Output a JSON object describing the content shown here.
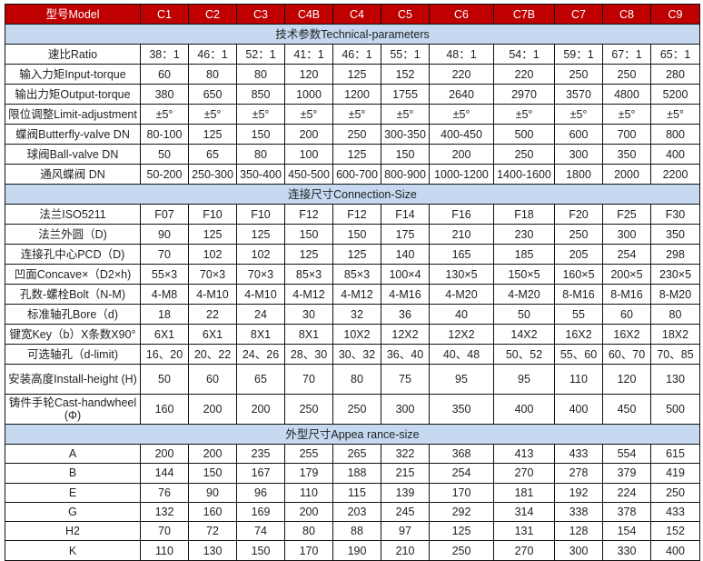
{
  "header": {
    "label": "型号Model",
    "models": [
      "C1",
      "C2",
      "C3",
      "C4B",
      "C4",
      "C5",
      "C6",
      "C7B",
      "C7",
      "C8",
      "C9"
    ]
  },
  "colors": {
    "header_bg": "#c00000",
    "section_bg": "#c6d9f0"
  },
  "sections": [
    {
      "title": "技术参数Technical-parameters",
      "rows": [
        {
          "label": "速比Ratio",
          "values": [
            "38：1",
            "46：1",
            "52：1",
            "41：1",
            "46：1",
            "55：1",
            "48：1",
            "54：1",
            "59：1",
            "67：1",
            "65：1"
          ]
        },
        {
          "label": "输入力矩Input-torque",
          "values": [
            "60",
            "80",
            "80",
            "120",
            "125",
            "152",
            "220",
            "220",
            "250",
            "250",
            "280"
          ]
        },
        {
          "label": "输出力矩Output-torque",
          "values": [
            "380",
            "650",
            "850",
            "1000",
            "1200",
            "1755",
            "2640",
            "2970",
            "3570",
            "4800",
            "5200"
          ]
        },
        {
          "label": "限位调整Limit-adjustment",
          "values": [
            "±5°",
            "±5°",
            "±5°",
            "±5°",
            "±5°",
            "±5°",
            "±5°",
            "±5°",
            "±5°",
            "±5°",
            "±5°"
          ]
        },
        {
          "label": "蝶阀Butterfly-valve DN",
          "values": [
            "80-100",
            "125",
            "150",
            "200",
            "250",
            "300-350",
            "400-450",
            "500",
            "600",
            "700",
            "800"
          ]
        },
        {
          "label": "球阀Ball-valve DN",
          "values": [
            "50",
            "65",
            "80",
            "100",
            "125",
            "150",
            "200",
            "250",
            "300",
            "350",
            "400"
          ]
        },
        {
          "label": "通风蝶阀  DN",
          "values": [
            "50-200",
            "250-300",
            "350-400",
            "450-500",
            "600-700",
            "800-900",
            "1000-1200",
            "1400-1600",
            "1800",
            "2000",
            "2200"
          ]
        }
      ]
    },
    {
      "title": "连接尺寸Connection-Size",
      "rows": [
        {
          "label": "法兰ISO5211",
          "values": [
            "F07",
            "F10",
            "F10",
            "F12",
            "F12",
            "F14",
            "F16",
            "F18",
            "F20",
            "F25",
            "F30"
          ]
        },
        {
          "label": "法兰外圆（D)",
          "values": [
            "90",
            "125",
            "125",
            "150",
            "150",
            "175",
            "210",
            "230",
            "250",
            "300",
            "350"
          ]
        },
        {
          "label": "连接孔中心PCD（D)",
          "values": [
            "70",
            "102",
            "102",
            "125",
            "125",
            "140",
            "165",
            "185",
            "205",
            "254",
            "298"
          ]
        },
        {
          "label": "凹面Concave×（D2×h)",
          "values": [
            "55×3",
            "70×3",
            "70×3",
            "85×3",
            "85×3",
            "100×4",
            "130×5",
            "150×5",
            "160×5",
            "200×5",
            "230×5"
          ]
        },
        {
          "label": "孔数-螺栓Bolt（N-M)",
          "values": [
            "4-M8",
            "4-M10",
            "4-M10",
            "4-M12",
            "4-M12",
            "4-M16",
            "4-M20",
            "4-M20",
            "8-M16",
            "8-M16",
            "8-M20"
          ]
        },
        {
          "label": "标准轴孔Bore（d)",
          "values": [
            "18",
            "22",
            "24",
            "30",
            "32",
            "36",
            "40",
            "50",
            "55",
            "60",
            "80"
          ]
        },
        {
          "label": "键宽Key（b）X条数X90°",
          "values": [
            "6X1",
            "6X1",
            "8X1",
            "8X1",
            "10X2",
            "12X2",
            "12X2",
            "14X2",
            "16X2",
            "16X2",
            "18X2"
          ]
        },
        {
          "label": "可选轴孔（d-limit)",
          "values": [
            "16、20",
            "20、22",
            "24、26",
            "28、30",
            "30、32",
            "36、40",
            "40、48",
            "50、52",
            "55、60",
            "60、70",
            "70、85"
          ]
        },
        {
          "label": "安装高度Install-height (H)",
          "values": [
            "50",
            "60",
            "65",
            "70",
            "80",
            "75",
            "95",
            "95",
            "110",
            "120",
            "130"
          ],
          "tall": true
        },
        {
          "label": "铸件手轮Cast-handwheel (Φ)",
          "values": [
            "160",
            "200",
            "200",
            "250",
            "250",
            "300",
            "350",
            "400",
            "400",
            "450",
            "500"
          ],
          "tall": true
        }
      ]
    },
    {
      "title": "外型尺寸Appea rance-size",
      "rows": [
        {
          "label": "A",
          "values": [
            "200",
            "200",
            "235",
            "255",
            "265",
            "322",
            "368",
            "413",
            "433",
            "554",
            "615"
          ]
        },
        {
          "label": "B",
          "values": [
            "144",
            "150",
            "167",
            "179",
            "188",
            "215",
            "254",
            "270",
            "278",
            "379",
            "419"
          ]
        },
        {
          "label": "E",
          "values": [
            "76",
            "90",
            "96",
            "110",
            "115",
            "139",
            "170",
            "181",
            "192",
            "224",
            "250"
          ]
        },
        {
          "label": "G",
          "values": [
            "132",
            "160",
            "169",
            "200",
            "203",
            "245",
            "292",
            "314",
            "338",
            "378",
            "433"
          ]
        },
        {
          "label": "H2",
          "values": [
            "70",
            "72",
            "74",
            "80",
            "88",
            "97",
            "125",
            "131",
            "128",
            "154",
            "152"
          ]
        },
        {
          "label": "K",
          "values": [
            "110",
            "130",
            "150",
            "170",
            "190",
            "210",
            "250",
            "270",
            "300",
            "330",
            "400"
          ]
        }
      ]
    }
  ]
}
